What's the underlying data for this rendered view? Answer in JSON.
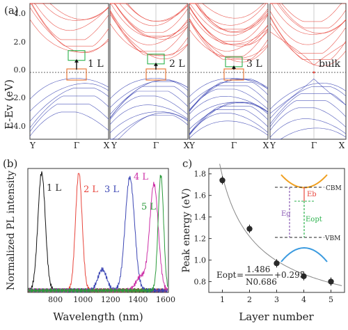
{
  "panel_a": {
    "label": "(a)",
    "ylabel": "E-Ev (eV)",
    "yticks": [
      "4.0",
      "2.0",
      "0.0",
      "-2.0",
      "-4.0"
    ],
    "subpanels": [
      {
        "name": "1 L",
        "xticks": [
          "Y",
          "Γ",
          "X"
        ]
      },
      {
        "name": "2 L",
        "xticks": [
          "Y",
          "Γ",
          "X"
        ]
      },
      {
        "name": "3 L",
        "xticks": [
          "Y",
          "Γ",
          "X"
        ]
      },
      {
        "name": "bulk",
        "xticks": [
          "Y",
          "Γ",
          "X"
        ]
      }
    ],
    "colors": {
      "conduction": "#e8453c",
      "valence": "#3c46b4",
      "box_cb": "#2bb24c",
      "box_vb": "#e8702a"
    }
  },
  "panel_b": {
    "label": "(b)"
  },
  "panel_c": {
    "label": "c)"
  },
  "chart_data": [
    {
      "type": "line",
      "xlabel": "Wavelength (nm)",
      "ylabel": "Normalized PL intensity",
      "xticks": [
        800,
        1000,
        1200,
        1400,
        1600
      ],
      "xlim": [
        600,
        1620
      ],
      "ylim": [
        0,
        1.05
      ],
      "series": [
        {
          "name": "1 L",
          "color": "#111111",
          "peak_x": 700,
          "peak_y": 1.0
        },
        {
          "name": "2 L",
          "color": "#e8453c",
          "peak_x": 970,
          "peak_y": 1.0
        },
        {
          "name": "3 L",
          "color": "#3c46b4",
          "peak_x": 1340,
          "peak_y": 0.96
        },
        {
          "name": "4 L",
          "color": "#cc2fa6",
          "peak_x": 1515,
          "peak_y": 0.9
        },
        {
          "name": "5 L",
          "color": "#2a9a3a",
          "peak_x": 1565,
          "peak_y": 0.98
        }
      ]
    },
    {
      "type": "scatter",
      "xlabel": "Layer number",
      "ylabel": "Peak energy (eV)",
      "xlim": [
        0.5,
        5.5
      ],
      "ylim": [
        0.7,
        1.85
      ],
      "xticks": [
        1,
        2,
        3,
        4,
        5
      ],
      "yticks": [
        "1.8",
        "1.6",
        "1.4",
        "1.2",
        "1.0",
        "0.8"
      ],
      "x": [
        1,
        2,
        3,
        4,
        5
      ],
      "y": [
        1.74,
        1.29,
        0.97,
        0.85,
        0.8
      ],
      "fit": {
        "a": 1.486,
        "b": 0.686,
        "c": 0.295
      },
      "formula": {
        "lhs": "Eopt",
        "eq": "=",
        "num": "1.486",
        "den": "N0.686",
        "tail": "+0.295"
      },
      "inset": {
        "cbm": "CBM",
        "vbm": "VBM",
        "eb": "Eb",
        "eg": "Eg",
        "eopt": "Eopt"
      }
    }
  ]
}
